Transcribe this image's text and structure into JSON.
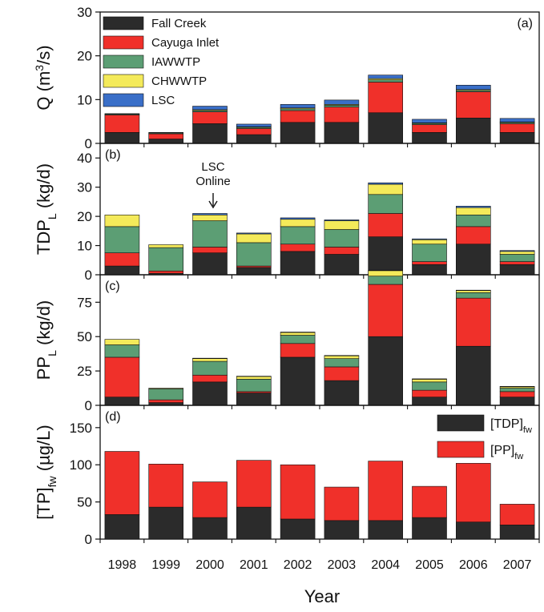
{
  "x_label": "Year",
  "colors": {
    "fall_creek": "#2b2b2b",
    "cayuga_inlet": "#f0302a",
    "iawwtp": "#5c9e74",
    "chwwtp": "#f4ea5a",
    "lsc": "#3a6fc8",
    "tdp": "#2b2b2b",
    "pp": "#f0302a"
  },
  "chart_data": [
    {
      "type": "bar",
      "stacked": true,
      "panel": "(a)",
      "ylabel": {
        "main": "Q (m",
        "sup": "3",
        "rest": "/s)"
      },
      "categories": [
        "1998",
        "1999",
        "2000",
        "2001",
        "2002",
        "2003",
        "2004",
        "2005",
        "2006",
        "2007"
      ],
      "ylim": [
        0,
        30
      ],
      "yticks": [
        0,
        10,
        20,
        30
      ],
      "legend_position": "top-left",
      "series": [
        {
          "name": "Fall Creek",
          "color_key": "fall_creek",
          "values": [
            2.5,
            1.0,
            4.5,
            2.0,
            4.8,
            4.8,
            7.0,
            2.5,
            5.8,
            2.5
          ]
        },
        {
          "name": "Cayuga Inlet",
          "color_key": "cayuga_inlet",
          "values": [
            4.0,
            1.2,
            2.7,
            1.4,
            2.7,
            3.5,
            7.0,
            1.8,
            6.0,
            2.0
          ]
        },
        {
          "name": "IAWWTP",
          "color_key": "iawwtp",
          "values": [
            0.2,
            0.2,
            0.3,
            0.3,
            0.4,
            0.4,
            0.5,
            0.3,
            0.3,
            0.3
          ]
        },
        {
          "name": "CHWWTP",
          "color_key": "chwwtp",
          "values": [
            0.1,
            0.1,
            0.2,
            0.1,
            0.2,
            0.2,
            0.3,
            0.1,
            0.2,
            0.1
          ]
        },
        {
          "name": "LSC",
          "color_key": "lsc",
          "values": [
            0.0,
            0.0,
            0.8,
            0.6,
            0.8,
            1.0,
            0.8,
            0.8,
            1.0,
            0.8
          ]
        }
      ]
    },
    {
      "type": "bar",
      "stacked": true,
      "panel": "(b)",
      "ylabel": {
        "main": "TDP",
        "sub": "L",
        "rest": " (kg/d)"
      },
      "categories": [
        "1998",
        "1999",
        "2000",
        "2001",
        "2002",
        "2003",
        "2004",
        "2005",
        "2006",
        "2007"
      ],
      "ylim": [
        0,
        45
      ],
      "yticks": [
        0,
        10,
        20,
        30,
        40
      ],
      "annotation": {
        "lines": [
          "LSC",
          "Online"
        ],
        "category": "2000"
      },
      "series": [
        {
          "name": "Fall Creek",
          "color_key": "fall_creek",
          "values": [
            3.0,
            0.5,
            7.5,
            2.5,
            8.0,
            7.0,
            13.0,
            3.5,
            10.5,
            3.5
          ]
        },
        {
          "name": "Cayuga Inlet",
          "color_key": "cayuga_inlet",
          "values": [
            4.5,
            0.8,
            2.0,
            0.5,
            2.5,
            2.5,
            8.0,
            1.0,
            6.0,
            1.0
          ]
        },
        {
          "name": "IAWWTP",
          "color_key": "iawwtp",
          "values": [
            9.0,
            8.0,
            9.0,
            8.0,
            6.0,
            6.0,
            6.5,
            6.0,
            4.0,
            2.5
          ]
        },
        {
          "name": "CHWWTP",
          "color_key": "chwwtp",
          "values": [
            4.0,
            1.0,
            2.0,
            3.0,
            2.5,
            3.0,
            3.5,
            1.5,
            2.5,
            1.0
          ]
        },
        {
          "name": "LSC",
          "color_key": "lsc",
          "values": [
            0.0,
            0.0,
            0.5,
            0.3,
            0.5,
            0.3,
            0.5,
            0.3,
            0.5,
            0.3
          ]
        }
      ]
    },
    {
      "type": "bar",
      "stacked": true,
      "panel": "(c)",
      "ylabel": {
        "main": "PP",
        "sub": "L",
        "rest": " (kg/d)"
      },
      "categories": [
        "1998",
        "1999",
        "2000",
        "2001",
        "2002",
        "2003",
        "2004",
        "2005",
        "2006",
        "2007"
      ],
      "ylim": [
        0,
        95
      ],
      "yticks": [
        0,
        25,
        50,
        75
      ],
      "series": [
        {
          "name": "Fall Creek",
          "color_key": "fall_creek",
          "values": [
            6.0,
            2.0,
            17.0,
            9.0,
            35.0,
            18.0,
            50.0,
            6.0,
            43.0,
            6.0
          ]
        },
        {
          "name": "Cayuga Inlet",
          "color_key": "cayuga_inlet",
          "values": [
            29.0,
            2.0,
            5.0,
            1.0,
            10.0,
            10.0,
            38.0,
            5.0,
            35.0,
            4.0
          ]
        },
        {
          "name": "IAWWTP",
          "color_key": "iawwtp",
          "values": [
            9.0,
            8.0,
            10.0,
            9.0,
            6.0,
            6.0,
            6.0,
            6.0,
            4.0,
            2.5
          ]
        },
        {
          "name": "CHWWTP",
          "color_key": "chwwtp",
          "values": [
            4.0,
            0.5,
            2.0,
            2.0,
            2.0,
            2.0,
            4.0,
            2.0,
            1.5,
            1.0
          ]
        },
        {
          "name": "LSC",
          "color_key": "lsc",
          "values": [
            0.0,
            0.0,
            0.3,
            0.2,
            0.3,
            0.3,
            0.3,
            0.3,
            0.3,
            0.3
          ]
        }
      ]
    },
    {
      "type": "bar",
      "stacked": true,
      "panel": "(d)",
      "ylabel": {
        "main": "[TP]",
        "sub": "fw",
        "rest": " (µg/L)"
      },
      "categories": [
        "1998",
        "1999",
        "2000",
        "2001",
        "2002",
        "2003",
        "2004",
        "2005",
        "2006",
        "2007"
      ],
      "ylim": [
        0,
        180
      ],
      "yticks": [
        0,
        50,
        100,
        150
      ],
      "legend_position": "top-right",
      "series": [
        {
          "name": "[TDP]",
          "name_sub": "fw",
          "color_key": "tdp",
          "values": [
            33,
            43,
            29,
            43,
            27,
            25,
            25,
            29,
            23,
            19
          ]
        },
        {
          "name": "[PP]",
          "name_sub": "fw",
          "color_key": "pp",
          "values": [
            85,
            58,
            48,
            63,
            73,
            45,
            80,
            42,
            79,
            28
          ]
        }
      ]
    }
  ]
}
